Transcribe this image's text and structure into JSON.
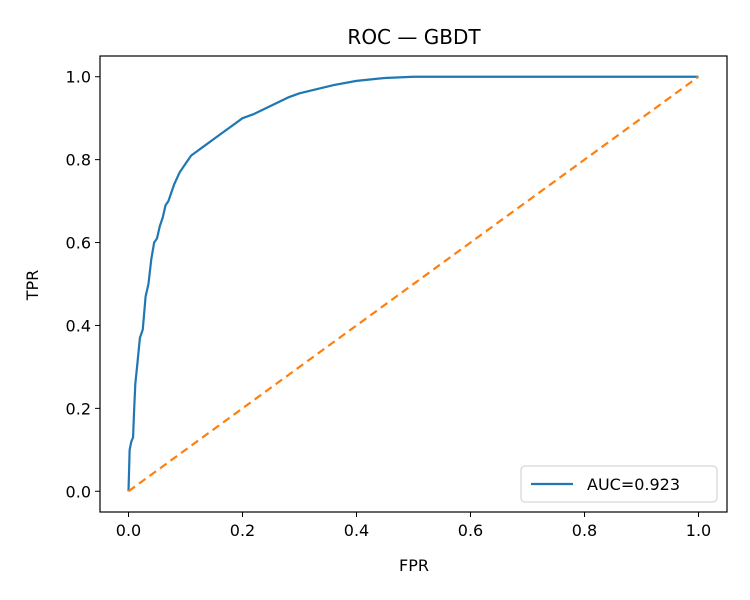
{
  "chart_data": {
    "type": "line",
    "title": "ROC — GBDT",
    "xlabel": "FPR",
    "ylabel": "TPR",
    "xlim": [
      -0.05,
      1.05
    ],
    "ylim": [
      -0.05,
      1.05
    ],
    "xticks": [
      0.0,
      0.2,
      0.4,
      0.6,
      0.8,
      1.0
    ],
    "yticks": [
      0.0,
      0.2,
      0.4,
      0.6,
      0.8,
      1.0
    ],
    "xtick_labels": [
      "0.0",
      "0.2",
      "0.4",
      "0.6",
      "0.8",
      "1.0"
    ],
    "ytick_labels": [
      "0.0",
      "0.2",
      "0.4",
      "0.6",
      "0.8",
      "1.0"
    ],
    "grid": false,
    "legend_position": "lower-right",
    "series": [
      {
        "name": "AUC=0.923",
        "color": "#1f77b4",
        "style": "solid",
        "x": [
          0.0,
          0.002,
          0.005,
          0.008,
          0.01,
          0.012,
          0.015,
          0.02,
          0.025,
          0.03,
          0.035,
          0.04,
          0.045,
          0.05,
          0.055,
          0.06,
          0.065,
          0.07,
          0.08,
          0.09,
          0.1,
          0.11,
          0.12,
          0.13,
          0.14,
          0.15,
          0.16,
          0.18,
          0.2,
          0.22,
          0.25,
          0.28,
          0.3,
          0.33,
          0.36,
          0.4,
          0.45,
          0.5,
          0.6,
          0.7,
          0.8,
          0.9,
          1.0
        ],
        "y": [
          0.0,
          0.1,
          0.12,
          0.13,
          0.2,
          0.26,
          0.3,
          0.37,
          0.39,
          0.47,
          0.5,
          0.56,
          0.6,
          0.61,
          0.64,
          0.66,
          0.69,
          0.7,
          0.74,
          0.77,
          0.79,
          0.81,
          0.82,
          0.83,
          0.84,
          0.85,
          0.86,
          0.88,
          0.9,
          0.91,
          0.93,
          0.95,
          0.96,
          0.97,
          0.98,
          0.99,
          0.997,
          1.0,
          1.0,
          1.0,
          1.0,
          1.0,
          1.0
        ]
      },
      {
        "name": "",
        "color": "#ff7f0e",
        "style": "dashed",
        "x": [
          0.0,
          1.0
        ],
        "y": [
          0.0,
          1.0
        ]
      }
    ],
    "legend": [
      {
        "label": "AUC=0.923",
        "color": "#1f77b4"
      }
    ]
  }
}
